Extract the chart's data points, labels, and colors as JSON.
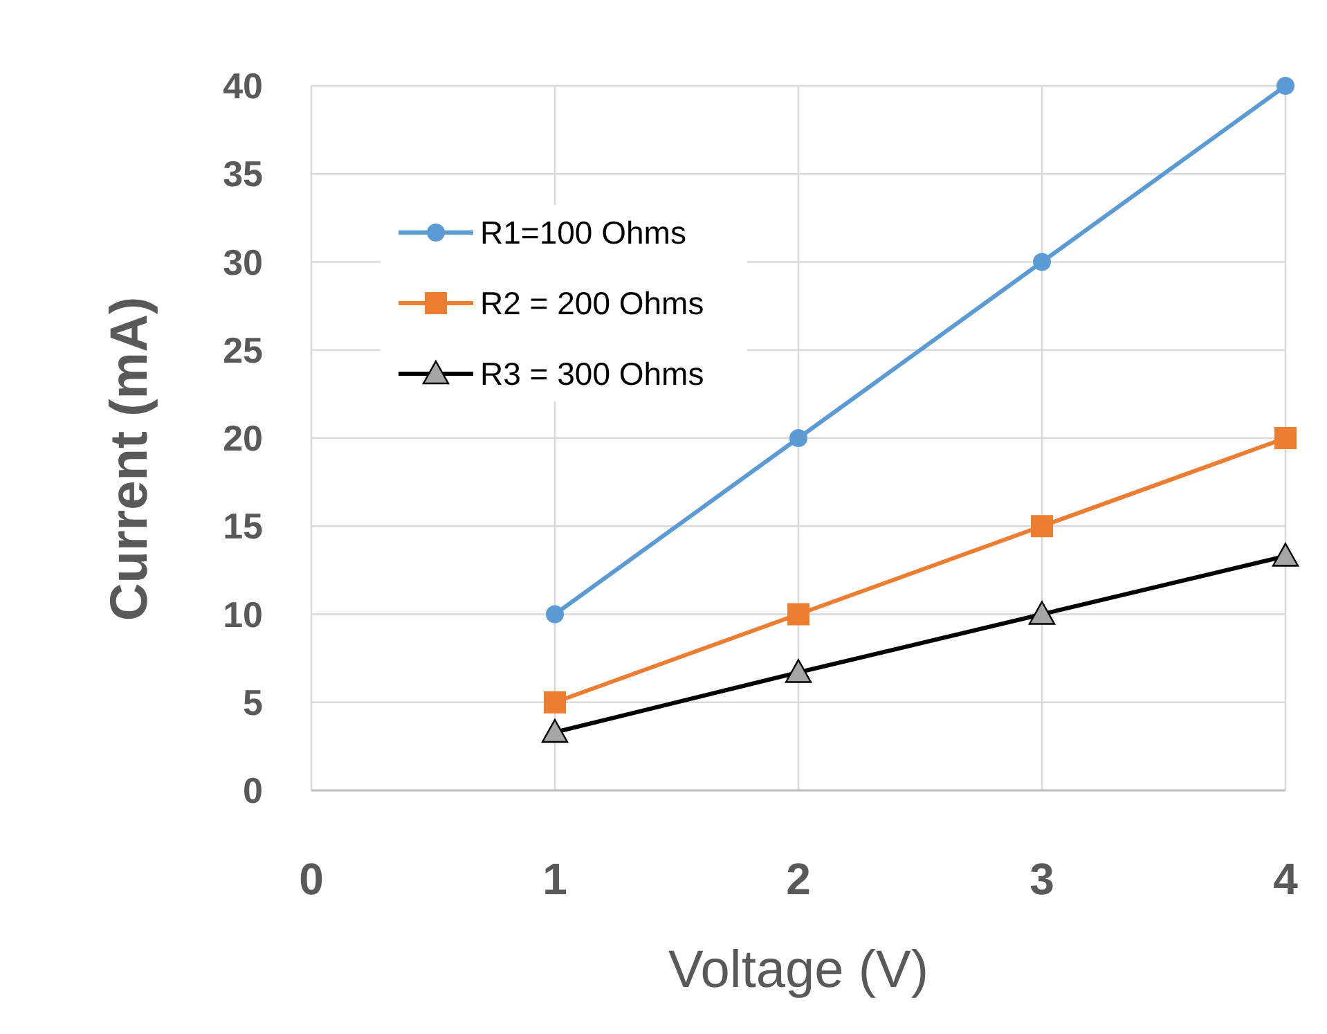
{
  "chart_data": {
    "type": "line",
    "xlabel": "Voltage (V)",
    "ylabel": "Current (mA)",
    "x": [
      1,
      2,
      3,
      4
    ],
    "series": [
      {
        "name": "R1=100 Ohms",
        "color": "#5b9bd5",
        "marker": "circle",
        "values": [
          10,
          20,
          30,
          40
        ]
      },
      {
        "name": "R2 = 200 Ohms",
        "color": "#ed7d31",
        "marker": "square",
        "values": [
          5,
          10,
          15,
          20
        ]
      },
      {
        "name": "R3 = 300 Ohms",
        "color": "#000000",
        "marker": "triangle",
        "values": [
          3.3,
          6.7,
          10,
          13.3
        ]
      }
    ],
    "xlim": [
      0,
      4
    ],
    "xticks": [
      0,
      1,
      2,
      3,
      4
    ],
    "ylim": [
      0,
      40
    ],
    "yticks": [
      0,
      5,
      10,
      15,
      20,
      25,
      30,
      35,
      40
    ],
    "grid": true,
    "legend": "top left",
    "line_style": "solid"
  }
}
